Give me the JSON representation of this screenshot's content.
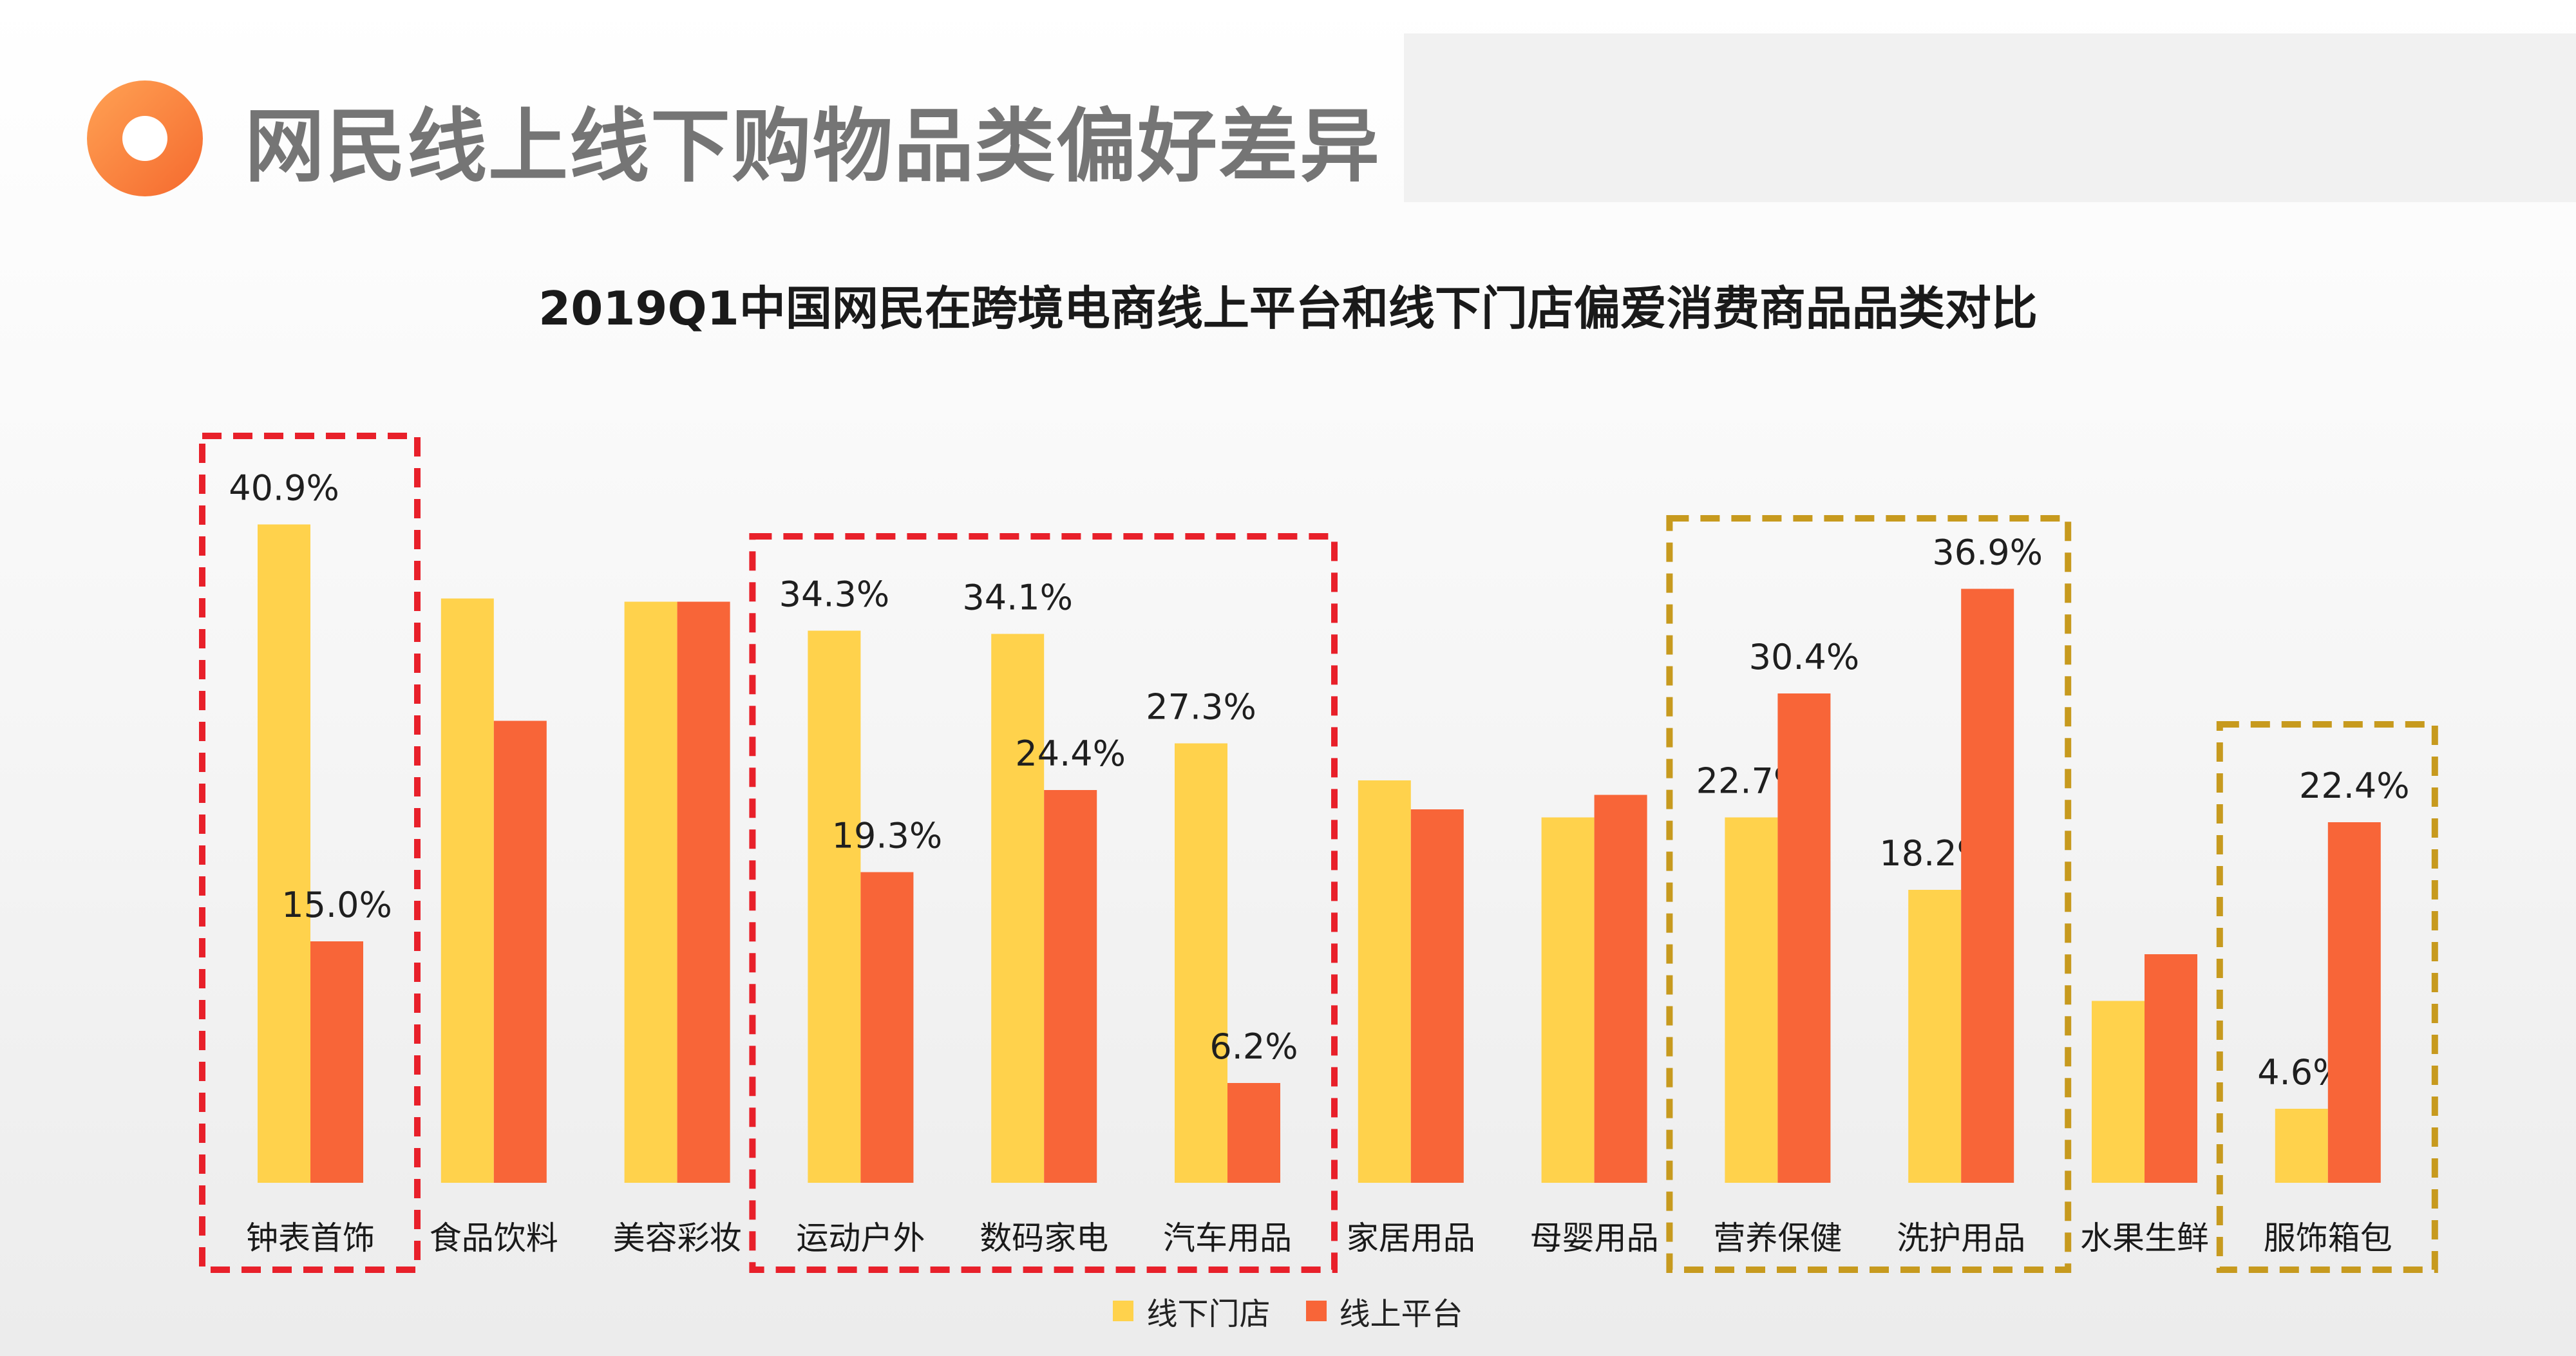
{
  "header": {
    "title": "网民线上线下购物品类偏好差异"
  },
  "colors": {
    "offline": "#FFD24C",
    "online": "#F86538",
    "highlight_red": "#E8202A",
    "highlight_gold": "#C79A1E",
    "logo_accent": "#F5692E"
  },
  "icons": [
    "logo-ring-icon"
  ],
  "chart_data": {
    "type": "bar",
    "title": "2019Q1中国网民在跨境电商线上平台和线下门店偏爱消费商品品类对比",
    "xlabel": "",
    "ylabel": "",
    "ylim": [
      0,
      45
    ],
    "grid": false,
    "legend_placement": "bottom",
    "categories": [
      "钟表首饰",
      "食品饮料",
      "美容彩妆",
      "运动户外",
      "数码家电",
      "汽车用品",
      "家居用品",
      "母婴用品",
      "营养保健",
      "洗护用品",
      "水果生鲜",
      "服饰箱包"
    ],
    "series": [
      {
        "name": "线下门店",
        "values": [
          40.9,
          36.3,
          36.1,
          34.3,
          34.1,
          27.3,
          25.0,
          22.7,
          22.7,
          18.2,
          11.3,
          4.6
        ],
        "labels": [
          "40.9%",
          null,
          null,
          "34.3%",
          "34.1%",
          "27.3%",
          null,
          null,
          "22.7%",
          "18.2%",
          null,
          "4.6%"
        ]
      },
      {
        "name": "线上平台",
        "values": [
          15.0,
          28.7,
          36.1,
          19.3,
          24.4,
          6.2,
          23.2,
          24.1,
          30.4,
          36.9,
          14.2,
          22.4
        ],
        "labels": [
          "15.0%",
          null,
          null,
          "19.3%",
          "24.4%",
          "6.2%",
          null,
          null,
          "30.4%",
          "36.9%",
          null,
          "22.4%"
        ]
      }
    ],
    "highlight_groups": [
      {
        "style": "red",
        "categories": [
          "钟表首饰"
        ]
      },
      {
        "style": "red",
        "categories": [
          "运动户外",
          "数码家电",
          "汽车用品"
        ]
      },
      {
        "style": "gold",
        "categories": [
          "营养保健",
          "洗护用品"
        ]
      },
      {
        "style": "gold",
        "categories": [
          "服饰箱包"
        ]
      }
    ]
  }
}
